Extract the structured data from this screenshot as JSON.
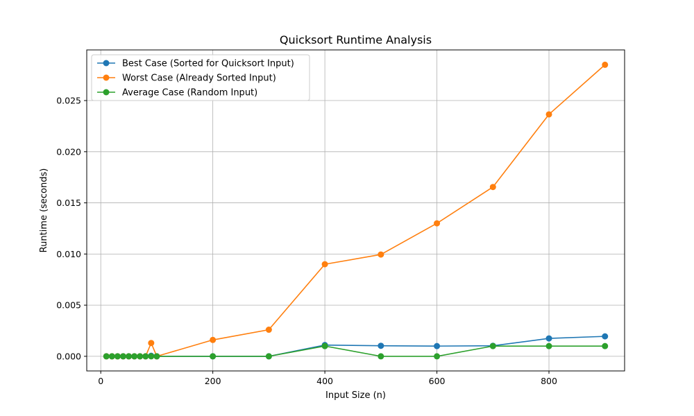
{
  "chart_data": {
    "type": "line",
    "title": "Quicksort Runtime Analysis",
    "xlabel": "Input Size (n)",
    "ylabel": "Runtime (seconds)",
    "xlim": [
      -25,
      935
    ],
    "ylim": [
      -0.00143,
      0.02995
    ],
    "xticks": [
      0,
      200,
      400,
      600,
      800
    ],
    "xtick_labels": [
      "0",
      "200",
      "400",
      "600",
      "800"
    ],
    "yticks": [
      0.0,
      0.005,
      0.01,
      0.015,
      0.02,
      0.025
    ],
    "ytick_labels": [
      "0.000",
      "0.005",
      "0.010",
      "0.015",
      "0.020",
      "0.025"
    ],
    "grid": true,
    "legend": "upper-left",
    "x": [
      10,
      20,
      30,
      40,
      50,
      60,
      70,
      80,
      90,
      100,
      200,
      300,
      400,
      500,
      600,
      700,
      800,
      900
    ],
    "series": [
      {
        "name": "Best Case (Sorted for Quicksort Input)",
        "color": "#1f77b4",
        "values": [
          0,
          0,
          0,
          0,
          0,
          0,
          0,
          0,
          5e-05,
          0,
          0,
          0,
          0.0011,
          0.00103,
          0.001,
          0.00103,
          0.00175,
          0.00195
        ]
      },
      {
        "name": "Worst Case (Already Sorted Input)",
        "color": "#ff7f0e",
        "values": [
          0,
          0,
          0,
          0,
          0,
          0,
          0,
          0,
          0.0013,
          0,
          0.0016,
          0.0026,
          0.009,
          0.00995,
          0.013,
          0.01655,
          0.02365,
          0.0285
        ]
      },
      {
        "name": "Average Case (Random Input)",
        "color": "#2ca02c",
        "values": [
          0,
          0,
          0,
          0,
          0,
          0,
          0,
          0,
          0,
          0,
          0,
          0,
          0.001,
          0,
          0,
          0.001,
          0.001,
          0.001
        ]
      }
    ]
  }
}
